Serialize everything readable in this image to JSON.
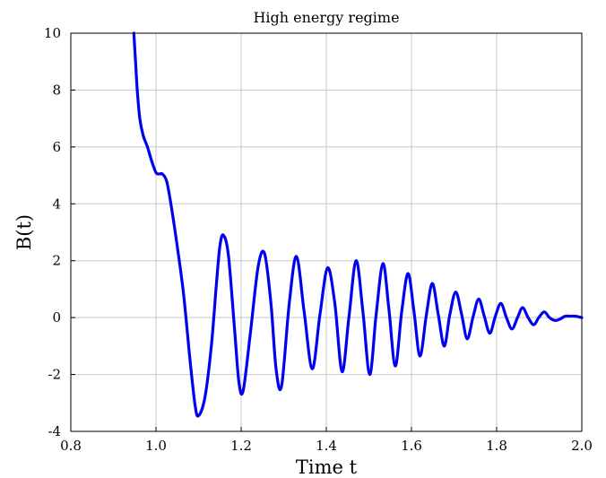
{
  "chart_data": {
    "type": "line",
    "title": "High energy regime",
    "xlabel": "Time t",
    "ylabel": "B(t)",
    "xlim": [
      0.8,
      2.0
    ],
    "ylim": [
      -4,
      10
    ],
    "xticks": [
      "0.8",
      "1.0",
      "1.2",
      "1.4",
      "1.6",
      "1.8",
      "2.0"
    ],
    "yticks": [
      "-4",
      "-2",
      "0",
      "2",
      "4",
      "6",
      "8",
      "10"
    ],
    "xtick_values": [
      0.8,
      1.0,
      1.2,
      1.4,
      1.6,
      1.8,
      2.0
    ],
    "ytick_values": [
      -4,
      -2,
      0,
      2,
      4,
      6,
      8,
      10
    ],
    "grid": true,
    "series": [
      {
        "color": "#0000ee",
        "x": [
          0.948,
          0.952,
          0.956,
          0.962,
          0.97,
          0.98,
          0.99,
          1.0,
          1.008,
          1.015,
          1.025,
          1.035,
          1.05,
          1.065,
          1.08,
          1.092,
          1.1,
          1.115,
          1.13,
          1.142,
          1.15,
          1.158,
          1.17,
          1.185,
          1.195,
          1.205,
          1.222,
          1.24,
          1.255,
          1.27,
          1.282,
          1.295,
          1.313,
          1.33,
          1.348,
          1.367,
          1.385,
          1.403,
          1.42,
          1.437,
          1.453,
          1.47,
          1.486,
          1.502,
          1.517,
          1.533,
          1.547,
          1.562,
          1.577,
          1.592,
          1.606,
          1.62,
          1.635,
          1.649,
          1.663,
          1.677,
          1.69,
          1.704,
          1.718,
          1.731,
          1.745,
          1.758,
          1.771,
          1.784,
          1.797,
          1.81,
          1.823,
          1.836,
          1.849,
          1.861,
          1.874,
          1.887,
          1.899,
          1.912,
          1.924,
          1.937,
          1.949,
          1.961,
          1.973,
          1.985,
          2.0
        ],
        "y": [
          10.0,
          9.0,
          8.0,
          7.0,
          6.4,
          6.0,
          5.5,
          5.1,
          5.05,
          5.05,
          4.8,
          4.0,
          2.5,
          0.8,
          -1.5,
          -3.1,
          -3.45,
          -2.8,
          -1.0,
          1.2,
          2.5,
          2.9,
          2.2,
          -0.5,
          -2.3,
          -2.55,
          -0.5,
          1.8,
          2.25,
          0.5,
          -1.8,
          -2.4,
          0.5,
          2.15,
          0.2,
          -1.8,
          0.1,
          1.75,
          0.5,
          -1.9,
          0.0,
          2.0,
          0.2,
          -2.0,
          0.1,
          1.9,
          0.3,
          -1.7,
          0.2,
          1.55,
          0.2,
          -1.35,
          0.1,
          1.2,
          0.1,
          -1.0,
          0.1,
          0.9,
          0.1,
          -0.75,
          0.05,
          0.65,
          0.05,
          -0.55,
          0.05,
          0.5,
          0.0,
          -0.4,
          0.0,
          0.35,
          0.0,
          -0.25,
          0.0,
          0.2,
          0.0,
          -0.1,
          -0.05,
          0.05,
          0.05,
          0.05,
          0.0
        ]
      }
    ]
  }
}
